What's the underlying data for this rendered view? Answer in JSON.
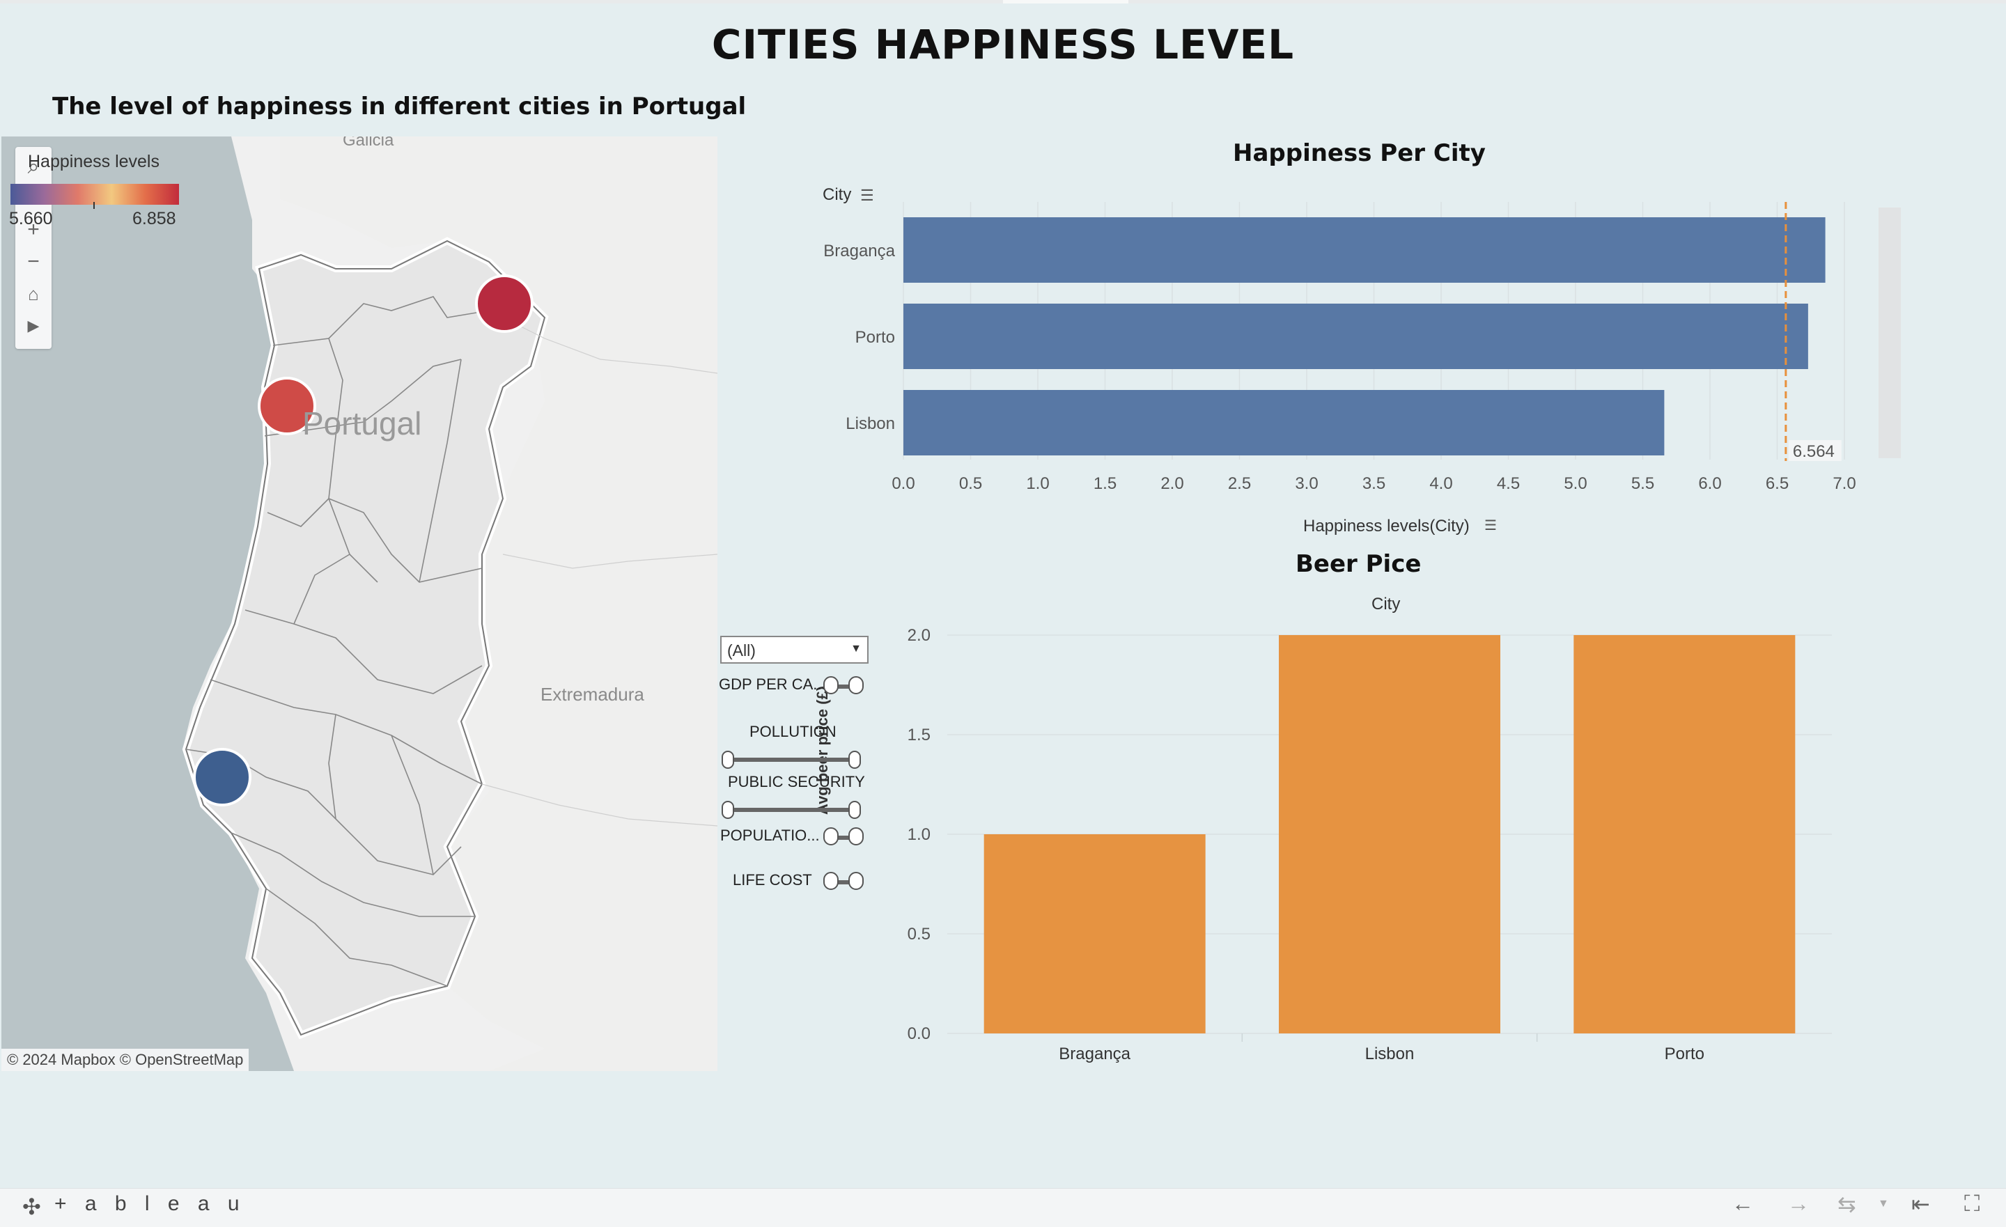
{
  "dashboard": {
    "title": "CITIES HAPPINESS LEVEL"
  },
  "map": {
    "title": "The level of happiness in different cities in Portugal",
    "legend_title": "Happiness levels",
    "legend_min": "5.660",
    "legend_max": "6.858",
    "labels": [
      "Galicia",
      "Portugal",
      "Extremadura"
    ],
    "attribution": "© 2024 Mapbox  © OpenStreetMap",
    "colors": {
      "braganca": "#b72a3f",
      "porto": "#cf4b47",
      "lisbon": "#3e5f8f"
    }
  },
  "happiness_chart": {
    "title": "Happiness Per City",
    "row_header": "City",
    "axis_label": "Happiness levels(City)",
    "reference_label": "6.564",
    "ticks": [
      "0.0",
      "0.5",
      "1.0",
      "1.5",
      "2.0",
      "2.5",
      "3.0",
      "3.5",
      "4.0",
      "4.5",
      "5.0",
      "5.5",
      "6.0",
      "6.5",
      "7.0"
    ],
    "bar_color": "#5878a5",
    "ref_color": "#e8903b"
  },
  "beer_chart": {
    "title": "Beer Pice",
    "column_header": "City",
    "ylabel": "Avg beer price (£)",
    "ticks": [
      "0.0",
      "0.5",
      "1.0",
      "1.5",
      "2.0"
    ],
    "bar_color": "#e69341"
  },
  "filters": {
    "dropdown_value": "(All)",
    "labels": [
      "GDP PER CA...",
      "POLLUTION",
      "PUBLIC SECURITY",
      "POPULATIO...",
      "LIFE COST"
    ]
  },
  "footer": {
    "logo": "+ a b l e a u"
  },
  "chart_data": [
    {
      "type": "bar",
      "orientation": "horizontal",
      "title": "Happiness Per City",
      "categories": [
        "Bragança",
        "Porto",
        "Lisbon"
      ],
      "values": [
        6.858,
        6.73,
        5.66
      ],
      "xlabel": "Happiness levels(City)",
      "ylabel": "City",
      "xlim": [
        0,
        7.0
      ],
      "reference_line": 6.564,
      "grid": true
    },
    {
      "type": "bar",
      "title": "Beer Pice",
      "categories": [
        "Bragança",
        "Lisbon",
        "Porto"
      ],
      "values": [
        1.0,
        2.0,
        2.0
      ],
      "xlabel": "City",
      "ylabel": "Avg beer price (£)",
      "ylim": [
        0,
        2.0
      ],
      "grid": true
    }
  ]
}
